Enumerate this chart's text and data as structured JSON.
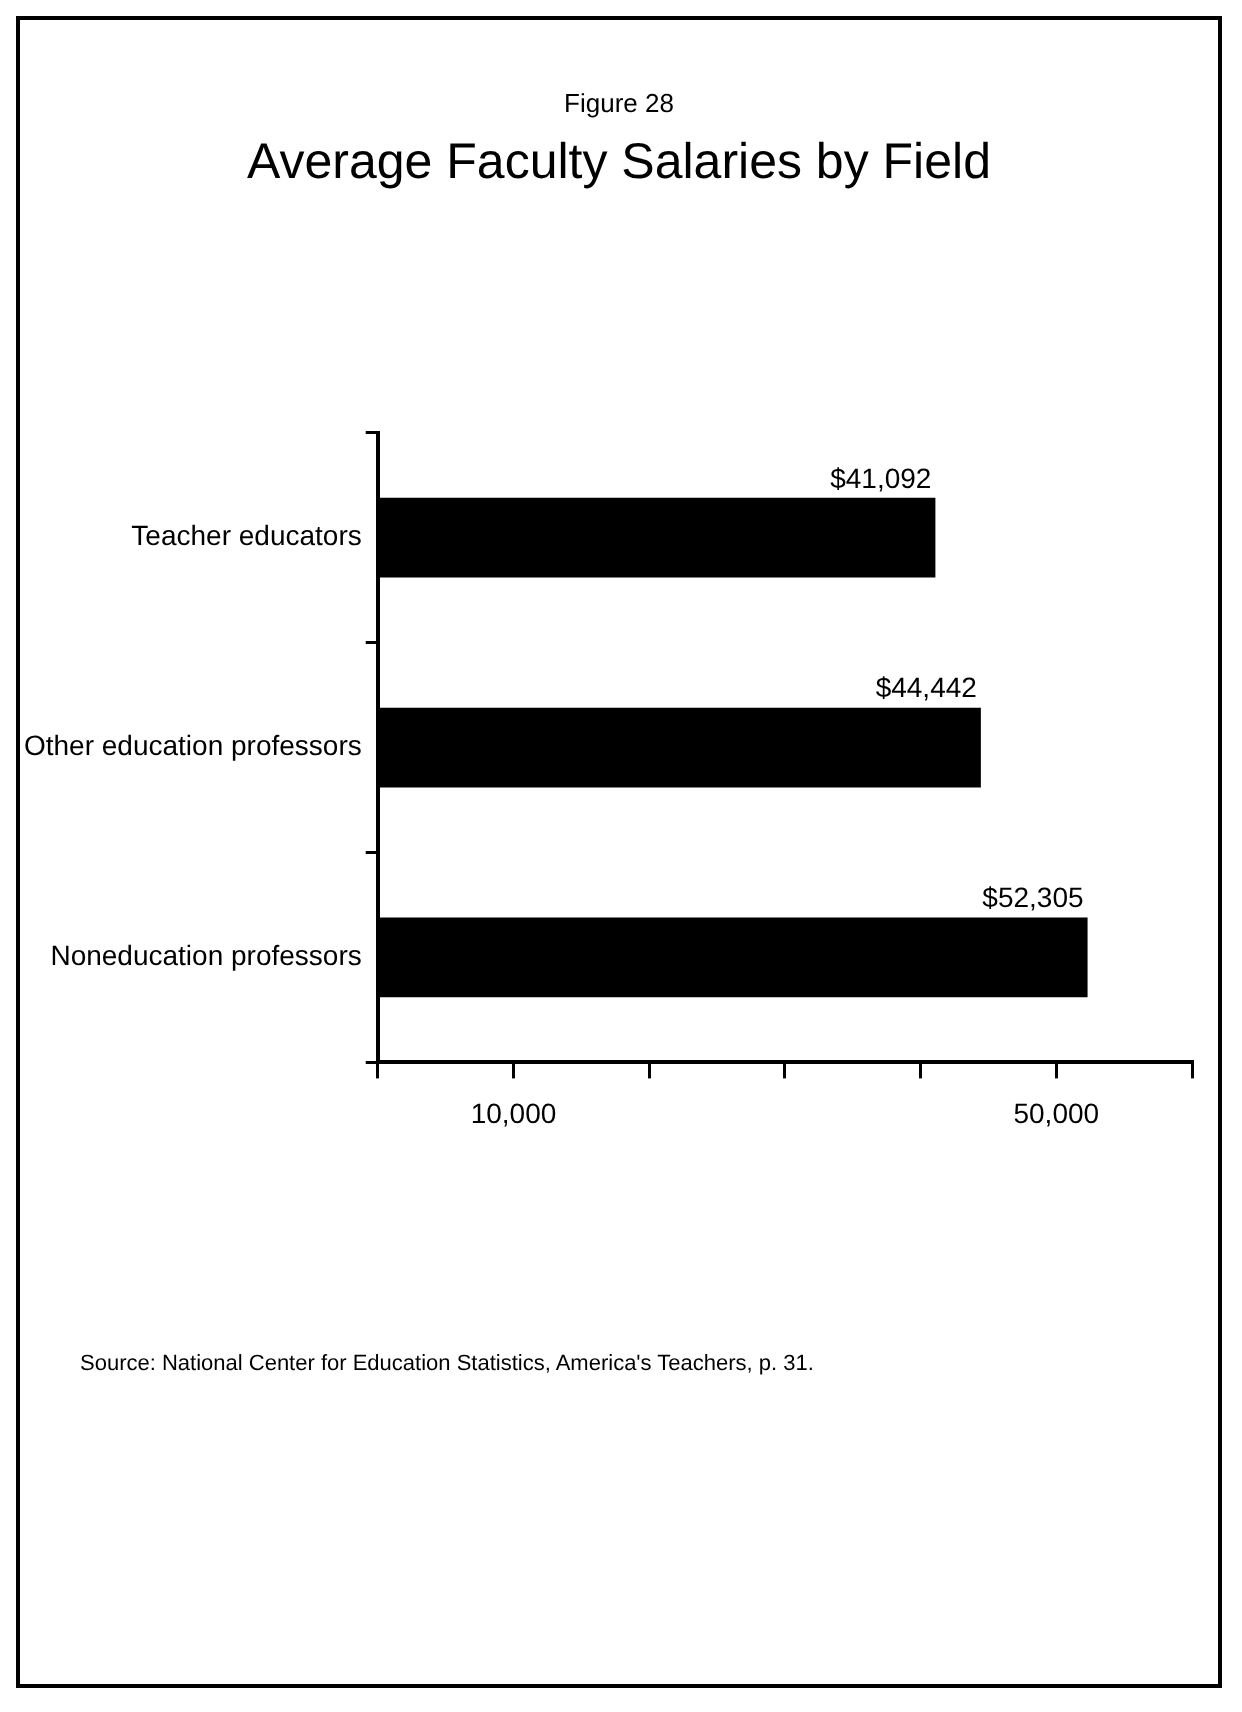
{
  "chart_data": {
    "type": "bar",
    "orientation": "horizontal",
    "subtitle": "Figure 28",
    "title": "Average Faculty Salaries by Field",
    "categories": [
      "Teacher educators",
      "Other education professors",
      "Noneducation professors"
    ],
    "values": [
      41092,
      44442,
      52305
    ],
    "value_labels": [
      "$41,092",
      "$44,442",
      "$52,305"
    ],
    "color": "#000000",
    "xlim": [
      0,
      60000
    ],
    "xticks": [
      {
        "value": 0,
        "label": null
      },
      {
        "value": 10000,
        "label": "10,000"
      },
      {
        "value": 20000,
        "label": null
      },
      {
        "value": 30000,
        "label": null
      },
      {
        "value": 40000,
        "label": null
      },
      {
        "value": 50000,
        "label": "50,000"
      },
      {
        "value": 60000,
        "label": null
      }
    ],
    "grid": false,
    "legend": false,
    "annotations": [
      "Source:  National Center for Education Statistics, America's Teachers, p. 31."
    ]
  }
}
